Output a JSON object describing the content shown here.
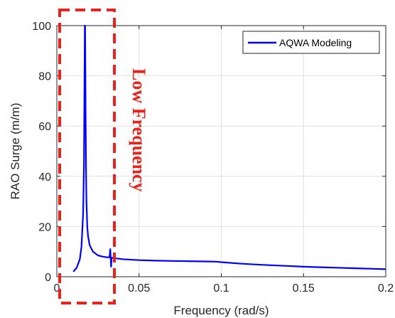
{
  "colors": {
    "series": "#0000ff",
    "annotation": "#e8231c",
    "grid": "#e0e0e0",
    "axis": "#262626"
  },
  "chart_data": {
    "type": "line",
    "title": "",
    "xlabel": "Frequency (rad/s)",
    "ylabel": "RAO Surge (m/m)",
    "xlim": [
      0,
      0.2
    ],
    "ylim": [
      0,
      100
    ],
    "xticks": [
      0,
      0.05,
      0.1,
      0.15,
      0.2
    ],
    "xtick_labels": [
      "0",
      "0.05",
      "0.1",
      "0.15",
      "0.2"
    ],
    "yticks": [
      0,
      20,
      40,
      60,
      80,
      100
    ],
    "ytick_labels": [
      "0",
      "20",
      "40",
      "60",
      "80",
      "100"
    ],
    "grid": true,
    "legend_position": "top-right",
    "series": [
      {
        "name": "AQWA Modeling",
        "x": [
          0.01,
          0.012,
          0.014,
          0.015,
          0.016,
          0.0165,
          0.017,
          0.0172,
          0.0175,
          0.0178,
          0.018,
          0.0185,
          0.019,
          0.02,
          0.022,
          0.025,
          0.028,
          0.03,
          0.032,
          0.0325,
          0.033,
          0.0333,
          0.0336,
          0.034,
          0.036,
          0.04,
          0.05,
          0.06,
          0.07,
          0.08,
          0.09,
          0.097,
          0.1,
          0.11,
          0.12,
          0.13,
          0.14,
          0.15,
          0.16,
          0.17,
          0.18,
          0.19,
          0.2
        ],
        "y": [
          2.0,
          3.5,
          7.0,
          12.0,
          25.0,
          45.0,
          100.0,
          100.0,
          65.0,
          40.0,
          30.0,
          20.0,
          16.0,
          12.5,
          10.0,
          8.5,
          8.0,
          7.8,
          7.7,
          11.0,
          4.0,
          7.6,
          7.6,
          7.5,
          7.3,
          7.0,
          6.6,
          6.4,
          6.3,
          6.2,
          6.1,
          6.0,
          5.8,
          5.3,
          4.9,
          4.6,
          4.3,
          4.0,
          3.8,
          3.6,
          3.4,
          3.2,
          3.0
        ]
      }
    ],
    "annotations": [
      {
        "text": "Low Frequency",
        "orientation": "vertical",
        "style": "red dashed box highlighting 0 to 0.035 rad/s",
        "x_range": [
          0.002,
          0.035
        ]
      }
    ]
  }
}
